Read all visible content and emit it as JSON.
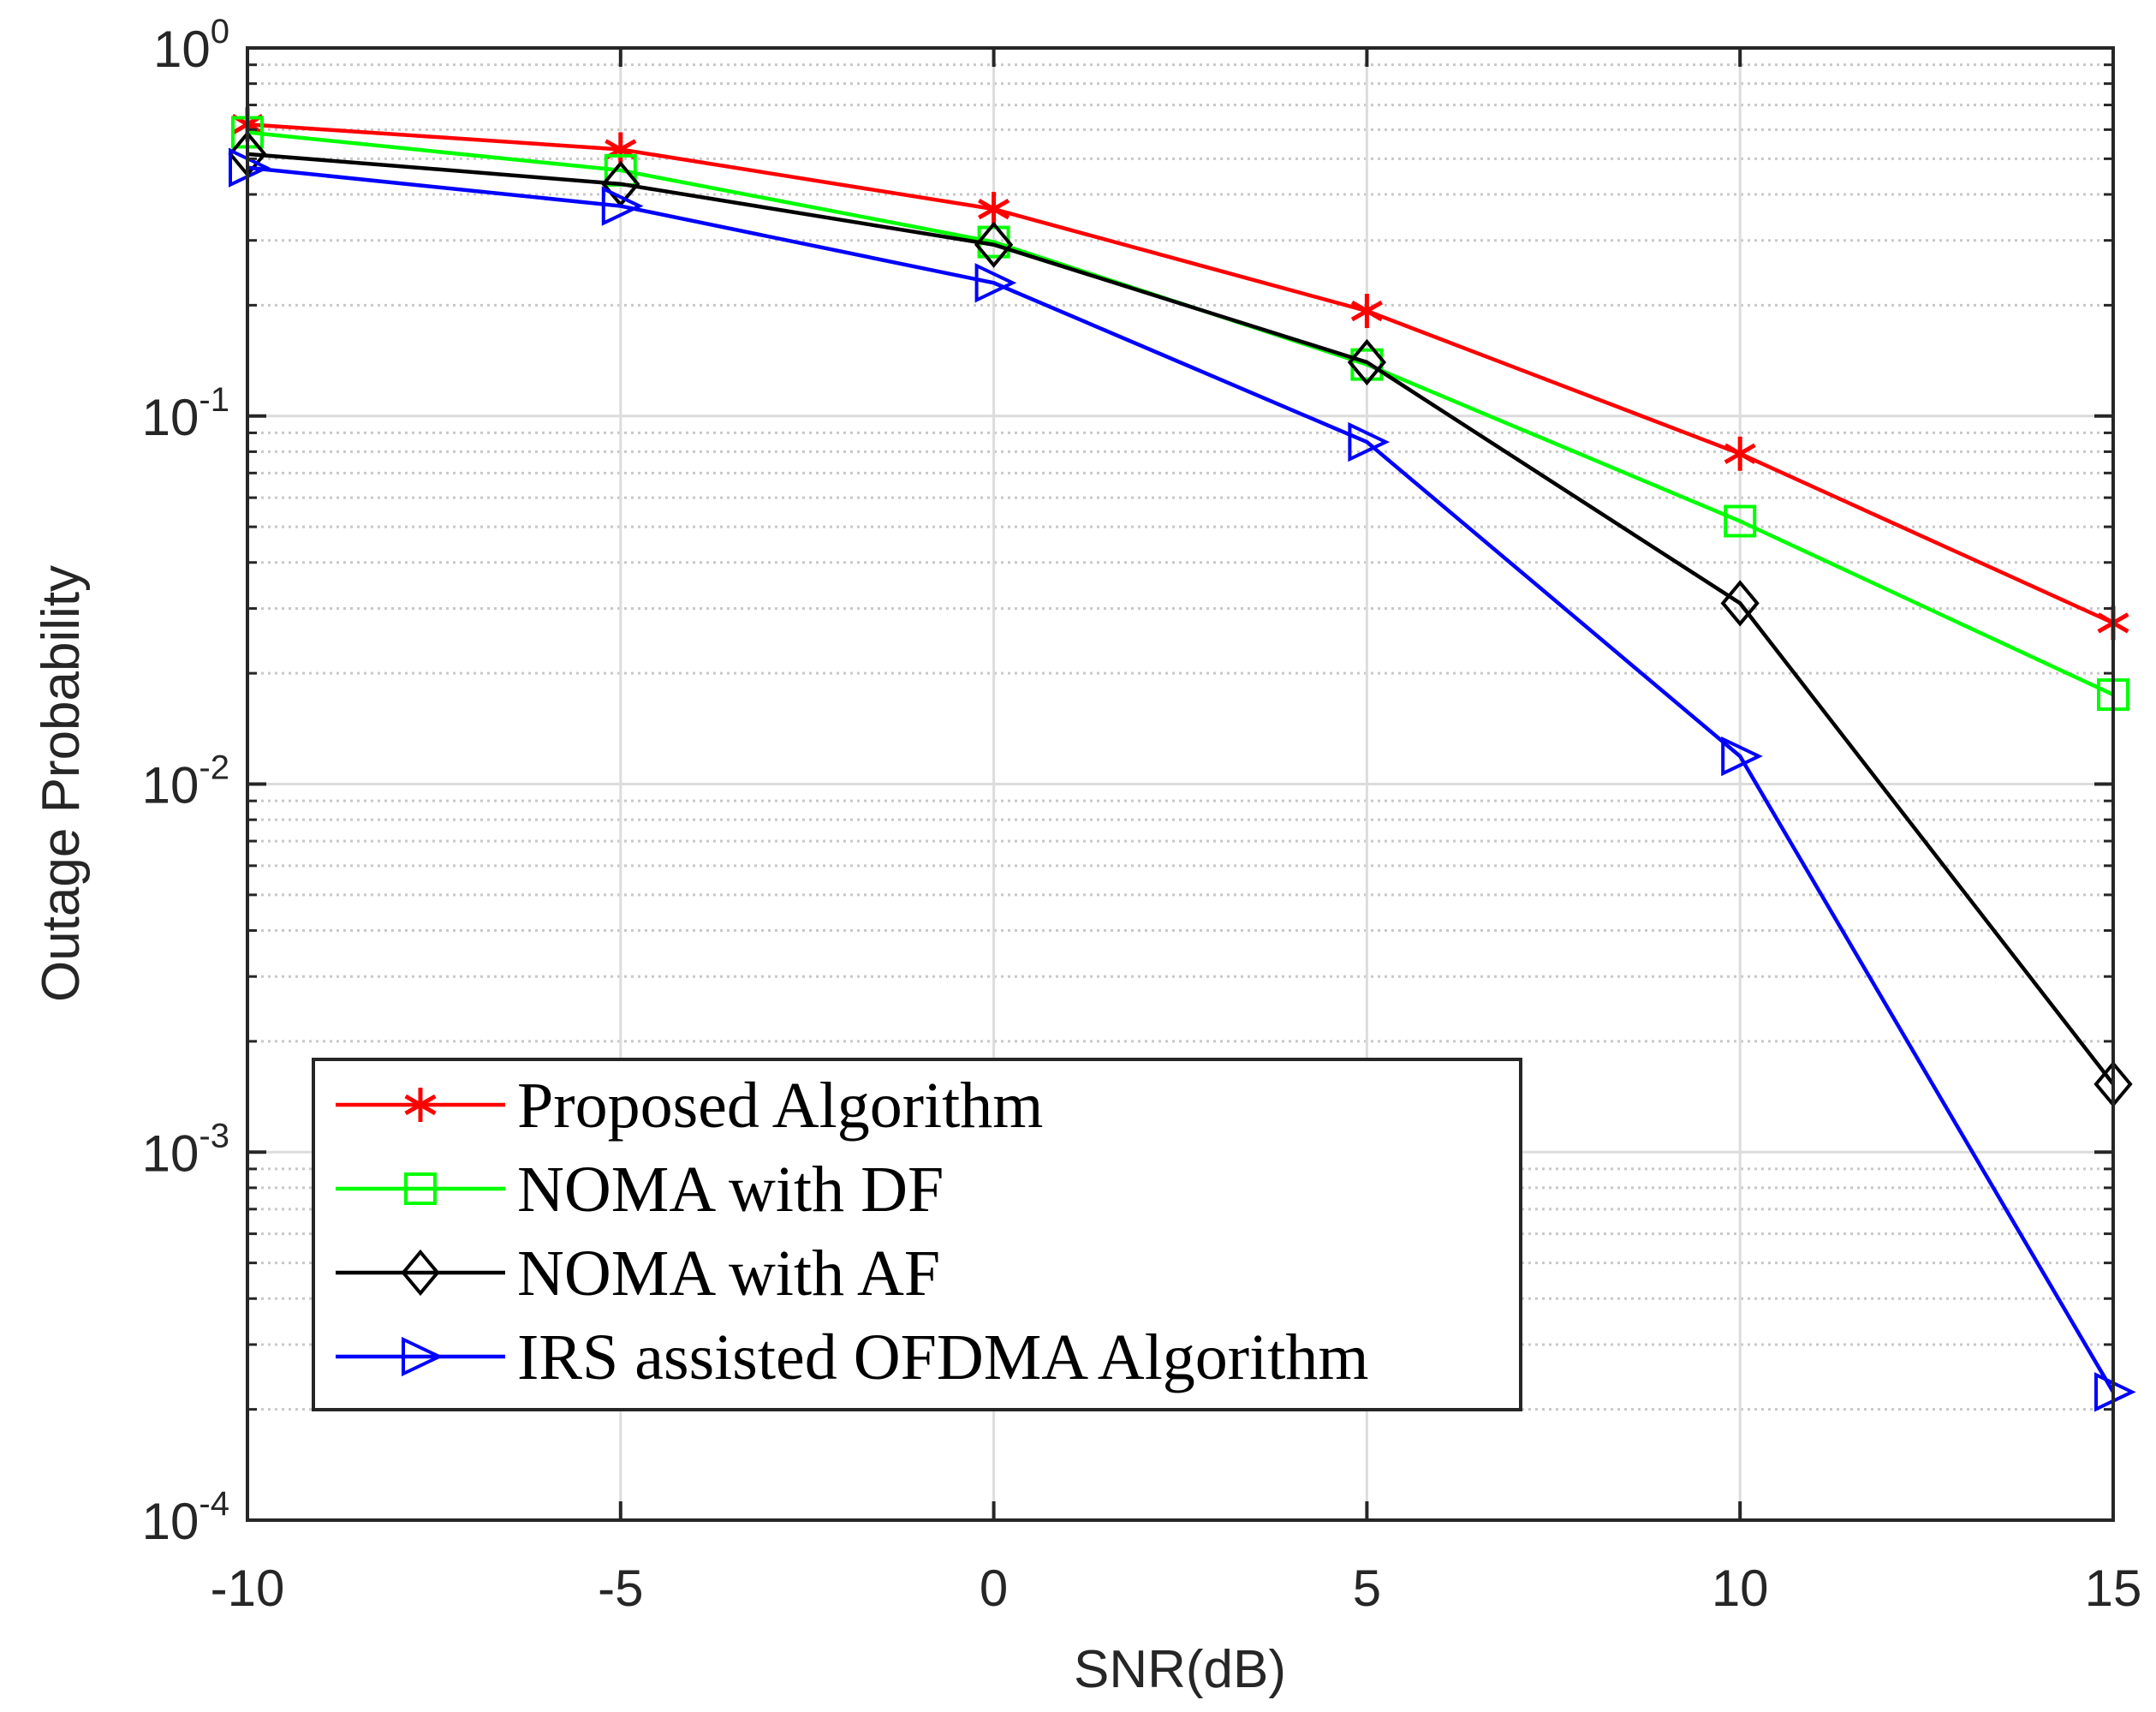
{
  "chart_data": {
    "type": "line",
    "title": "",
    "xlabel": "SNR(dB)",
    "ylabel": "Outage Probability",
    "yscale": "log",
    "xlim": [
      -10,
      15
    ],
    "ylim": [
      0.0001,
      1
    ],
    "grid": true,
    "legend_position": "bottom-left",
    "x": [
      -10,
      -5,
      0,
      5,
      10,
      15
    ],
    "x_tick_labels": [
      "-10",
      "-5",
      "0",
      "5",
      "10",
      "15"
    ],
    "y_tick_base": "10",
    "y_tick_exponents": [
      "0",
      "-1",
      "-2",
      "-3",
      "-4"
    ],
    "series": [
      {
        "name": "Proposed Algorithm",
        "color": "#ff0000",
        "marker": "asterisk",
        "values": [
          0.62,
          0.53,
          0.365,
          0.193,
          0.079,
          0.0274
        ]
      },
      {
        "name": "NOMA with DF",
        "color": "#00ff00",
        "marker": "square",
        "values": [
          0.59,
          0.465,
          0.297,
          0.138,
          0.0518,
          0.0175
        ]
      },
      {
        "name": "NOMA with AF",
        "color": "#000000",
        "marker": "diamond",
        "values": [
          0.515,
          0.427,
          0.292,
          0.14,
          0.031,
          0.00153
        ]
      },
      {
        "name": "IRS assisted OFDMA Algorithm",
        "color": "#0000ff",
        "marker": "triangle-right",
        "values": [
          0.473,
          0.372,
          0.23,
          0.085,
          0.0119,
          0.000223
        ]
      }
    ]
  }
}
